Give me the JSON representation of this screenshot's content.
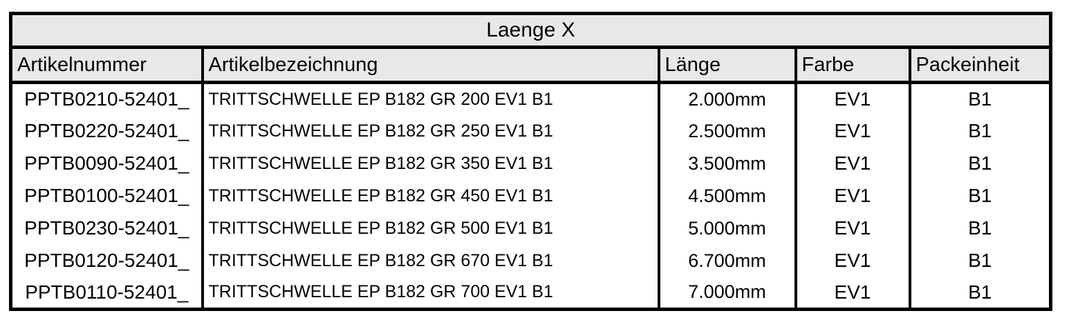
{
  "table": {
    "title": "Laenge X",
    "columns": [
      "Artikelnummer",
      "Artikelbezeichnung",
      "Länge",
      "Farbe",
      "Packeinheit"
    ],
    "rows": [
      [
        "PPTB0210-52401_",
        "TRITTSCHWELLE EP B182 GR 200 EV1 B1",
        "2.000mm",
        "EV1",
        "B1"
      ],
      [
        "PPTB0220-52401_",
        "TRITTSCHWELLE EP B182 GR 250 EV1 B1",
        "2.500mm",
        "EV1",
        "B1"
      ],
      [
        "PPTB0090-52401_",
        "TRITTSCHWELLE EP B182 GR 350 EV1 B1",
        "3.500mm",
        "EV1",
        "B1"
      ],
      [
        "PPTB0100-52401_",
        "TRITTSCHWELLE EP B182 GR 450 EV1 B1",
        "4.500mm",
        "EV1",
        "B1"
      ],
      [
        "PPTB0230-52401_",
        "TRITTSCHWELLE EP B182 GR 500 EV1 B1",
        "5.000mm",
        "EV1",
        "B1"
      ],
      [
        "PPTB0120-52401_",
        "TRITTSCHWELLE EP B182 GR 670 EV1 B1",
        "6.700mm",
        "EV1",
        "B1"
      ],
      [
        "PPTB0110-52401_",
        "TRITTSCHWELLE EP B182 GR 700 EV1 B1",
        "7.000mm",
        "EV1",
        "B1"
      ]
    ],
    "cell_names": [
      "cell-artikelnummer",
      "cell-artikelbezeichnung",
      "cell-laenge",
      "cell-farbe",
      "cell-packeinheit"
    ],
    "colors": {
      "header_bg": "#e8e8e8",
      "border": "#000000",
      "text": "#000000",
      "row_bg": "#ffffff"
    }
  }
}
